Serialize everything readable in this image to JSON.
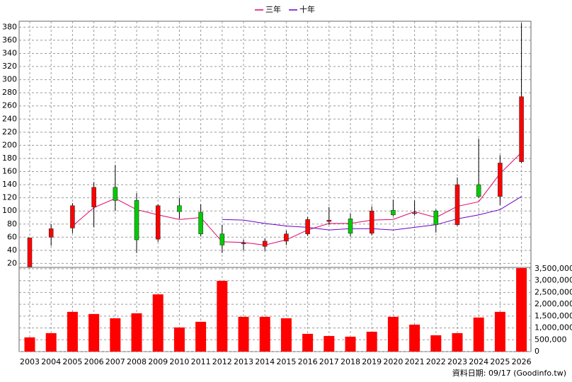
{
  "chart_data": [
    {
      "type": "candlestick",
      "categories": [
        "2003",
        "2004",
        "2005",
        "2006",
        "2007",
        "2008",
        "2009",
        "2010",
        "2011",
        "2012",
        "2013",
        "2014",
        "2015",
        "2016",
        "2017",
        "2018",
        "2019",
        "2020",
        "2021",
        "2022",
        "2023",
        "2024",
        "2025",
        "2026"
      ],
      "open": [
        15,
        60,
        74,
        106,
        136,
        116,
        57,
        108,
        98,
        65,
        50,
        46,
        54,
        65,
        84,
        88,
        66,
        101,
        96,
        100,
        79,
        140,
        122,
        175
      ],
      "high": [
        59,
        80,
        112,
        144,
        170,
        127,
        110,
        120,
        110,
        79,
        56,
        58,
        70,
        91,
        106,
        96,
        107,
        117,
        116,
        102,
        151,
        210,
        185,
        386
      ],
      "low": [
        15,
        47,
        66,
        75,
        100,
        36,
        53,
        88,
        61,
        36,
        40,
        39,
        48,
        62,
        79,
        61,
        63,
        92,
        93,
        67,
        77,
        120,
        109,
        173
      ],
      "close": [
        59,
        73,
        108,
        136,
        116,
        56,
        108,
        99,
        65,
        48,
        51,
        54,
        65,
        87,
        86,
        66,
        100,
        94,
        97,
        79,
        140,
        122,
        173,
        274
      ],
      "up_color": "#ff0000",
      "down_color": "#00cc00",
      "series": [
        {
          "name": "三年",
          "color": "#e0006a",
          "values": [
            null,
            null,
            77,
            105,
            119,
            102,
            94,
            87,
            90,
            53,
            52,
            48,
            56,
            71,
            81,
            81,
            86,
            87,
            99,
            90,
            107,
            114,
            157,
            189
          ]
        },
        {
          "name": "十年",
          "color": "#6a00cc",
          "values": [
            null,
            null,
            null,
            null,
            null,
            null,
            null,
            null,
            null,
            87,
            86,
            81,
            77,
            75,
            71,
            73,
            73,
            71,
            75,
            79,
            88,
            94,
            102,
            122
          ]
        }
      ],
      "ylim": [
        14,
        389
      ],
      "yticks": [
        20,
        40,
        60,
        80,
        100,
        120,
        140,
        160,
        180,
        200,
        220,
        240,
        260,
        280,
        300,
        320,
        340,
        360,
        380
      ],
      "grid": true,
      "legend": "top"
    },
    {
      "type": "bar",
      "values": [
        600000,
        780000,
        1680000,
        1590000,
        1410000,
        1620000,
        2420000,
        1020000,
        1260000,
        2990000,
        1470000,
        1470000,
        1410000,
        750000,
        660000,
        630000,
        840000,
        1470000,
        1140000,
        690000,
        780000,
        1440000,
        1680000,
        3530000
      ],
      "color": "#ff0000",
      "ylim": [
        0,
        3560000
      ],
      "yticks": [
        0,
        {
          "value": 500000,
          "label": "500,000"
        },
        {
          "value": 1000000,
          "label": "1,000,000"
        },
        {
          "value": 1500000,
          "label": "1,500,000"
        },
        {
          "value": 2000000,
          "label": "2,000,000"
        },
        {
          "value": 2500000,
          "label": "2,500,000"
        },
        {
          "value": 3000000,
          "label": "3,000,000"
        },
        {
          "value": 3500000,
          "label": "3,500,000"
        }
      ],
      "grid": true,
      "source": "資料日期: 09/17 (Goodinfo.tw)"
    }
  ]
}
